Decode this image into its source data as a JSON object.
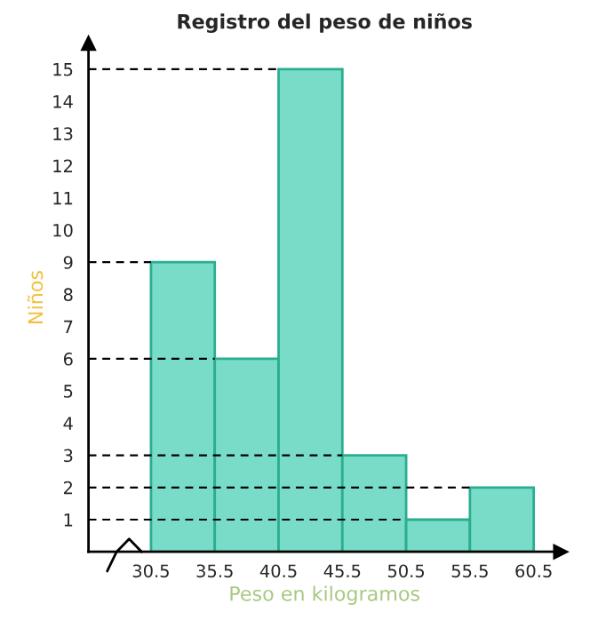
{
  "chart_data": {
    "type": "histogram",
    "title": "Registro del peso de niños",
    "xlabel": "Peso en kilogramos",
    "ylabel": "Niños",
    "bins": [
      30.5,
      35.5,
      40.5,
      45.5,
      50.5,
      55.5,
      60.5
    ],
    "values": [
      9,
      6,
      15,
      3,
      1,
      2
    ],
    "color": "#79dcc8",
    "xlim": [
      25.6,
      62.6
    ],
    "xticks": [
      30.5,
      35.5,
      40.5,
      45.5,
      50.5,
      55.5,
      60.5
    ],
    "ylim": [
      0,
      15.8
    ],
    "yticks": [
      1,
      2,
      3,
      4,
      5,
      6,
      7,
      8,
      9,
      10,
      11,
      12,
      13,
      14,
      15
    ],
    "ref_lines": [
      {
        "axis": "y",
        "value": 15,
        "line_style": "dashed",
        "color": "#000000"
      },
      {
        "axis": "y",
        "value": 9,
        "line_style": "dashed",
        "color": "#000000"
      },
      {
        "axis": "y",
        "value": 6,
        "line_style": "dashed",
        "color": "#000000"
      },
      {
        "axis": "y",
        "value": 3,
        "line_style": "dashed",
        "color": "#000000"
      },
      {
        "axis": "y",
        "value": 2,
        "line_style": "dashed",
        "color": "#000000"
      },
      {
        "axis": "y",
        "value": 1,
        "line_style": "dashed",
        "color": "#000000"
      }
    ],
    "grid": false,
    "legend": false
  }
}
